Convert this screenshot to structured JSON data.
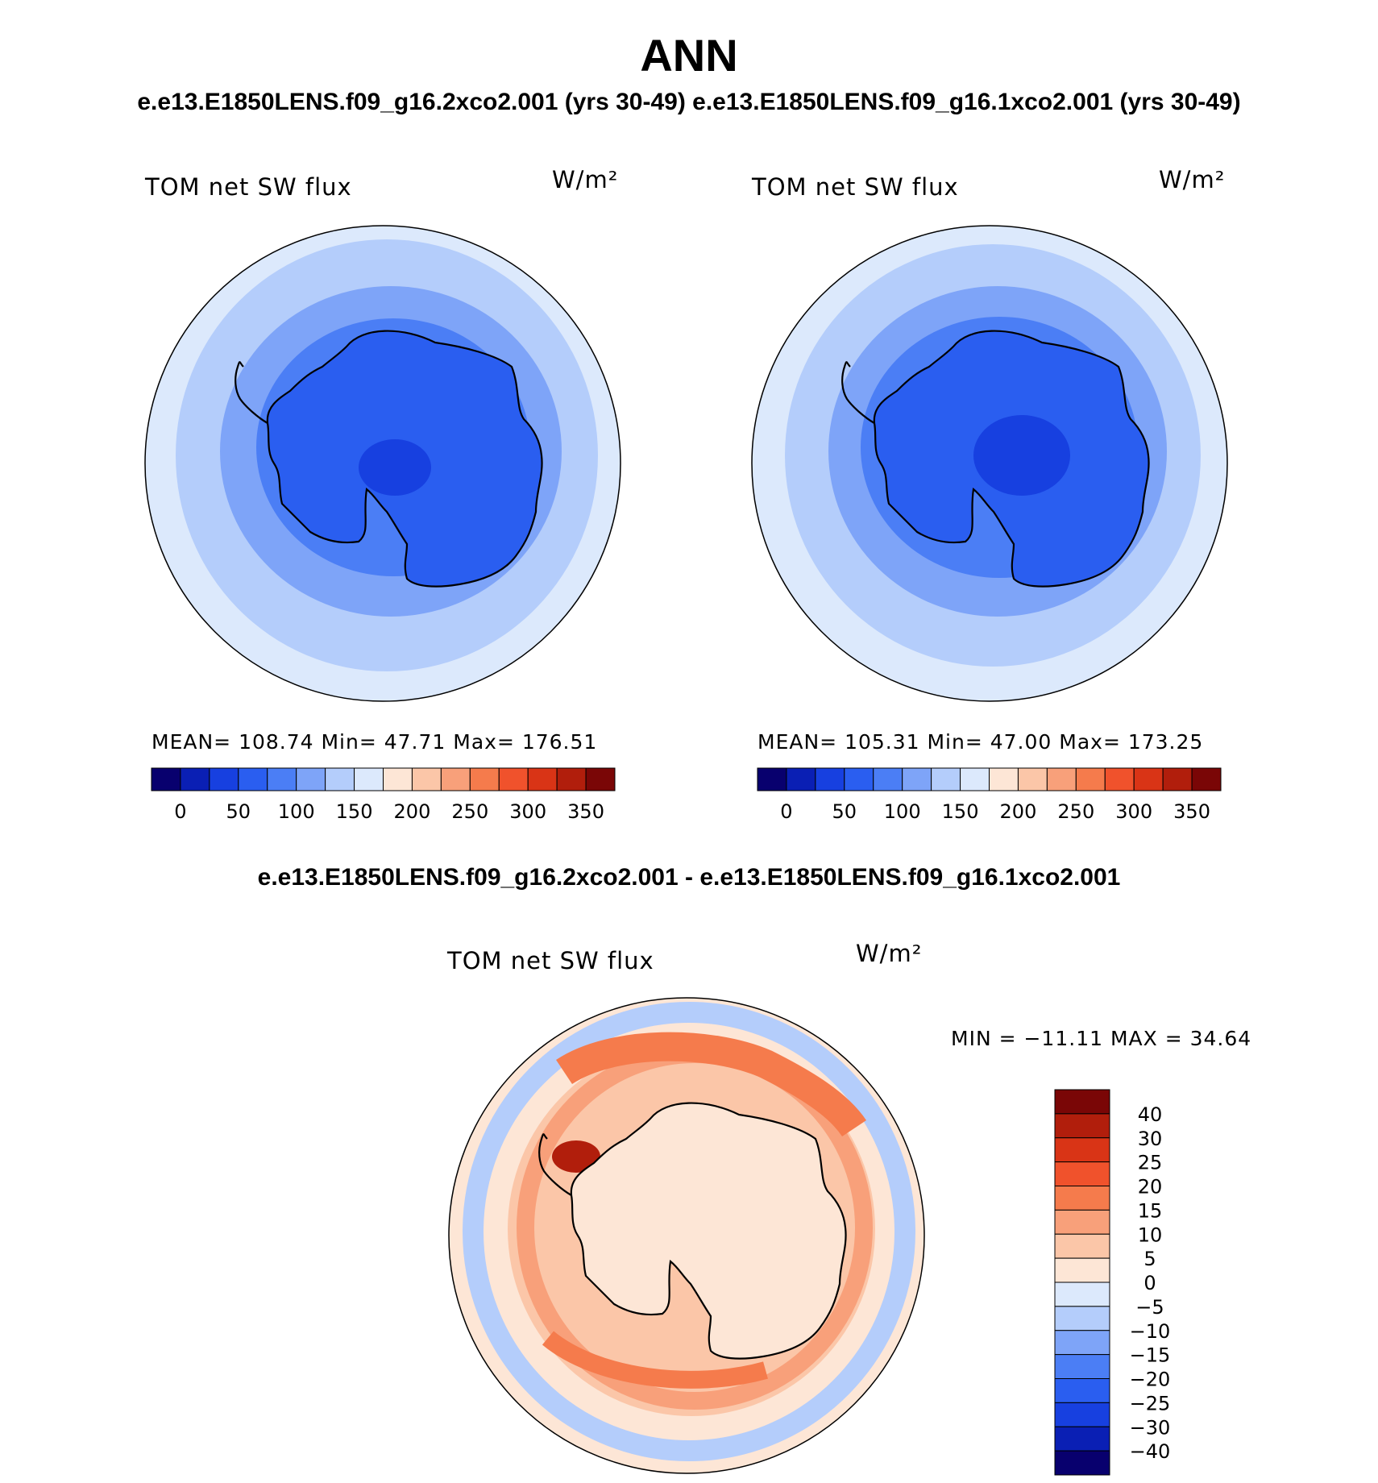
{
  "title": "ANN",
  "subtitle_top": "e.e13.E1850LENS.f09_g16.2xco2.001 (yrs 30-49) e.e13.E1850LENS.f09_g16.1xco2.001 (yrs 30-49)",
  "subtitle_diff": "e.e13.E1850LENS.f09_g16.2xco2.001 - e.e13.E1850LENS.f09_g16.1xco2.001",
  "panels": [
    {
      "variable": "TOM net SW flux",
      "units": "W/m²",
      "stats": "MEAN= 108.74   Min=   47.71   Max= 176.51"
    },
    {
      "variable": "TOM net SW flux",
      "units": "W/m²",
      "stats": "MEAN= 105.31   Min=   47.00   Max= 173.25"
    },
    {
      "variable": "TOM net SW flux",
      "units": "W/m²",
      "stats": "MIN = −11.11  MAX =   34.64"
    }
  ],
  "chart_data": [
    {
      "type": "heatmap",
      "projection": "south-polar stereographic",
      "variable": "TOM net SW flux",
      "units": "W/m²",
      "mean": 108.74,
      "min": 47.71,
      "max": 176.51,
      "colorbar": {
        "labels": [
          "0",
          "50",
          "100",
          "150",
          "200",
          "250",
          "300",
          "350"
        ],
        "colors": [
          "#08006e",
          "#0a1fb4",
          "#1740e0",
          "#2a5ef0",
          "#4b7ef5",
          "#7ea4f8",
          "#b4cdfb",
          "#dce9fc",
          "#fde6d6",
          "#fbc6a8",
          "#f8a07a",
          "#f57b4c",
          "#f0522c",
          "#d93416",
          "#b11e0c",
          "#7a0606"
        ]
      }
    },
    {
      "type": "heatmap",
      "projection": "south-polar stereographic",
      "variable": "TOM net SW flux",
      "units": "W/m²",
      "mean": 105.31,
      "min": 47.0,
      "max": 173.25,
      "colorbar": {
        "labels": [
          "0",
          "50",
          "100",
          "150",
          "200",
          "250",
          "300",
          "350"
        ],
        "colors": [
          "#08006e",
          "#0a1fb4",
          "#1740e0",
          "#2a5ef0",
          "#4b7ef5",
          "#7ea4f8",
          "#b4cdfb",
          "#dce9fc",
          "#fde6d6",
          "#fbc6a8",
          "#f8a07a",
          "#f57b4c",
          "#f0522c",
          "#d93416",
          "#b11e0c",
          "#7a0606"
        ]
      }
    },
    {
      "type": "heatmap",
      "projection": "south-polar stereographic",
      "variable": "TOM net SW flux",
      "units": "W/m²",
      "min": -11.11,
      "max": 34.64,
      "colorbar": {
        "labels": [
          "40",
          "30",
          "25",
          "20",
          "15",
          "10",
          "5",
          "0",
          "−5",
          "−10",
          "−15",
          "−20",
          "−25",
          "−30",
          "−40"
        ],
        "colors": [
          "#7a0606",
          "#b11e0c",
          "#d93416",
          "#f0522c",
          "#f57b4c",
          "#f8a07a",
          "#fbc6a8",
          "#fde6d6",
          "#dce9fc",
          "#b4cdfb",
          "#7ea4f8",
          "#4b7ef5",
          "#2a5ef0",
          "#1740e0",
          "#0a1fb4",
          "#08006e"
        ]
      }
    }
  ]
}
